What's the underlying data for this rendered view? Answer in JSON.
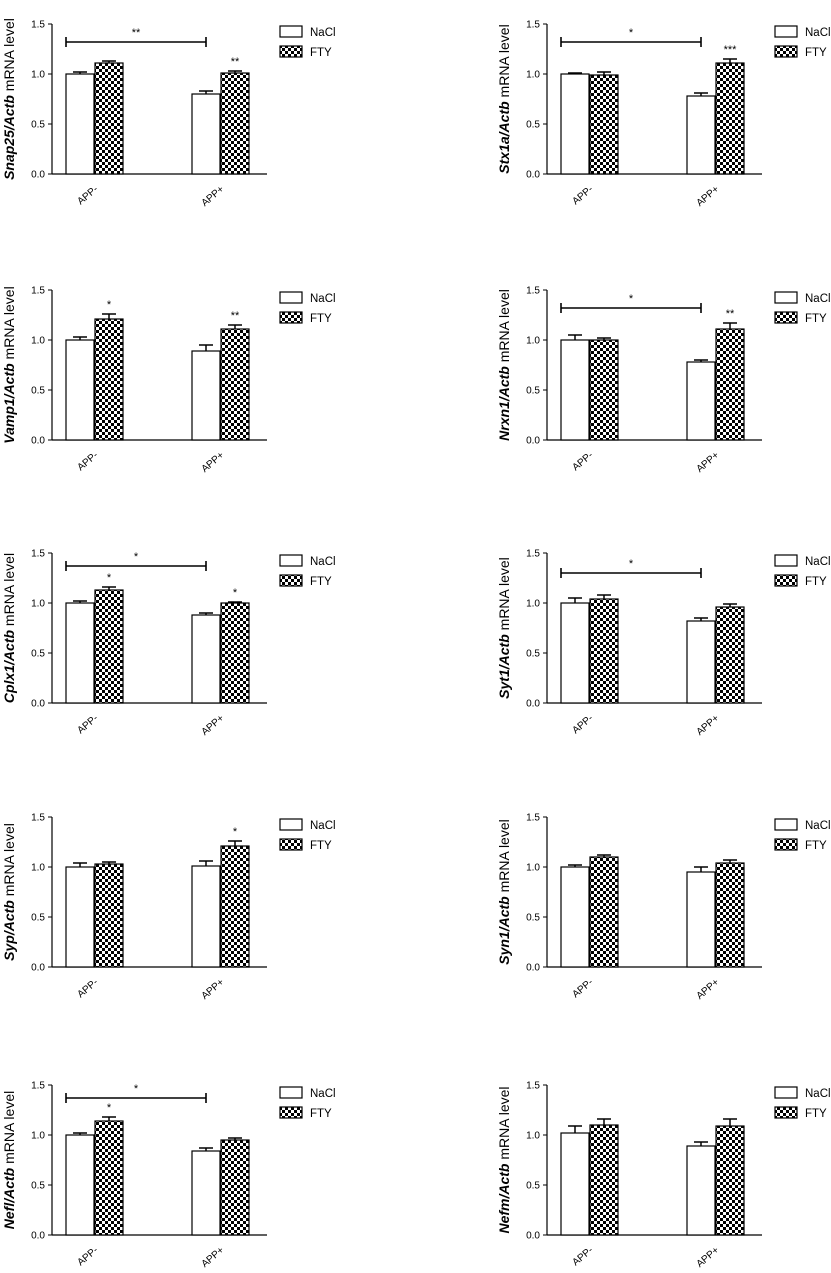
{
  "figure": {
    "patterns": {
      "FTY": "checker"
    },
    "colors": {
      "axis": "#000000",
      "bar_fill": "#ffffff",
      "bar_stroke": "#000000",
      "checker_dark": "#000000"
    }
  },
  "chart_data": [
    {
      "type": "bar",
      "ylabel_gene": "Snap25/Actb",
      "ylabel_rest": " mRNA level",
      "categories": [
        "APP-",
        "APP+"
      ],
      "series": [
        {
          "name": "NaCl",
          "values": [
            1.0,
            0.8
          ],
          "errors": [
            0.02,
            0.03
          ]
        },
        {
          "name": "FTY",
          "values": [
            1.11,
            1.01
          ],
          "errors": [
            0.02,
            0.02
          ]
        }
      ],
      "ylim": [
        0,
        1.5
      ],
      "yticks": [
        "0.0",
        "0.5",
        "1.0",
        "1.5"
      ],
      "legend": "top-right",
      "annotations": [
        {
          "type": "bracket",
          "from_category": 0,
          "to_category": 1,
          "y": 1.32,
          "label": "**"
        },
        {
          "type": "star",
          "category": 1,
          "series": 1,
          "label": "**"
        }
      ]
    },
    {
      "type": "bar",
      "ylabel_gene": "Stx1a/Actb",
      "ylabel_rest": " mRNA level",
      "categories": [
        "APP-",
        "APP+"
      ],
      "series": [
        {
          "name": "NaCl",
          "values": [
            1.0,
            0.78
          ],
          "errors": [
            0.01,
            0.03
          ]
        },
        {
          "name": "FTY",
          "values": [
            0.99,
            1.11
          ],
          "errors": [
            0.03,
            0.04
          ]
        }
      ],
      "ylim": [
        0,
        1.5
      ],
      "yticks": [
        "0.0",
        "0.5",
        "1.0",
        "1.5"
      ],
      "legend": "top-right",
      "annotations": [
        {
          "type": "bracket",
          "from_category": 0,
          "to_category": 1,
          "y": 1.32,
          "label": "*"
        },
        {
          "type": "star",
          "category": 1,
          "series": 1,
          "label": "***"
        }
      ]
    },
    {
      "type": "bar",
      "ylabel_gene": "Vamp1/Actb",
      "ylabel_rest": " mRNA level",
      "categories": [
        "APP-",
        "APP+"
      ],
      "series": [
        {
          "name": "NaCl",
          "values": [
            1.0,
            0.89
          ],
          "errors": [
            0.03,
            0.06
          ]
        },
        {
          "name": "FTY",
          "values": [
            1.21,
            1.11
          ],
          "errors": [
            0.05,
            0.04
          ]
        }
      ],
      "ylim": [
        0,
        1.5
      ],
      "yticks": [
        "0.0",
        "0.5",
        "1.0",
        "1.5"
      ],
      "legend": "top-right",
      "annotations": [
        {
          "type": "star",
          "category": 0,
          "series": 1,
          "label": "*"
        },
        {
          "type": "star",
          "category": 1,
          "series": 1,
          "label": "**"
        }
      ]
    },
    {
      "type": "bar",
      "ylabel_gene": "Nrxn1/Actb",
      "ylabel_rest": " mRNA level",
      "categories": [
        "APP-",
        "APP+"
      ],
      "series": [
        {
          "name": "NaCl",
          "values": [
            1.0,
            0.78
          ],
          "errors": [
            0.05,
            0.02
          ]
        },
        {
          "name": "FTY",
          "values": [
            1.0,
            1.11
          ],
          "errors": [
            0.02,
            0.06
          ]
        }
      ],
      "ylim": [
        0,
        1.5
      ],
      "yticks": [
        "0.0",
        "0.5",
        "1.0",
        "1.5"
      ],
      "legend": "top-right",
      "annotations": [
        {
          "type": "bracket",
          "from_category": 0,
          "to_category": 1,
          "y": 1.32,
          "label": "*"
        },
        {
          "type": "star",
          "category": 1,
          "series": 1,
          "label": "**"
        }
      ]
    },
    {
      "type": "bar",
      "ylabel_gene": "Cplx1/Actb",
      "ylabel_rest": " mRNA level",
      "categories": [
        "APP-",
        "APP+"
      ],
      "series": [
        {
          "name": "NaCl",
          "values": [
            1.0,
            0.88
          ],
          "errors": [
            0.02,
            0.02
          ]
        },
        {
          "name": "FTY",
          "values": [
            1.13,
            1.0
          ],
          "errors": [
            0.03,
            0.01
          ]
        }
      ],
      "ylim": [
        0,
        1.5
      ],
      "yticks": [
        "0.0",
        "0.5",
        "1.0",
        "1.5"
      ],
      "legend": "top-right",
      "annotations": [
        {
          "type": "bracket",
          "from_category": 0,
          "to_category": 1,
          "y": 1.37,
          "label": "*"
        },
        {
          "type": "star",
          "category": 0,
          "series": 1,
          "label": "*"
        },
        {
          "type": "star",
          "category": 1,
          "series": 1,
          "label": "*"
        }
      ]
    },
    {
      "type": "bar",
      "ylabel_gene": "Syt1/Actb",
      "ylabel_rest": " mRNA level",
      "categories": [
        "APP-",
        "APP+"
      ],
      "series": [
        {
          "name": "NaCl",
          "values": [
            1.0,
            0.82
          ],
          "errors": [
            0.05,
            0.03
          ]
        },
        {
          "name": "FTY",
          "values": [
            1.04,
            0.96
          ],
          "errors": [
            0.04,
            0.03
          ]
        }
      ],
      "ylim": [
        0,
        1.5
      ],
      "yticks": [
        "0.0",
        "0.5",
        "1.0",
        "1.5"
      ],
      "legend": "top-right",
      "annotations": [
        {
          "type": "bracket",
          "from_category": 0,
          "to_category": 1,
          "y": 1.3,
          "label": "*"
        }
      ]
    },
    {
      "type": "bar",
      "ylabel_gene": "Syp/Actb",
      "ylabel_rest": " mRNA level",
      "categories": [
        "APP-",
        "APP+"
      ],
      "series": [
        {
          "name": "NaCl",
          "values": [
            1.0,
            1.01
          ],
          "errors": [
            0.04,
            0.05
          ]
        },
        {
          "name": "FTY",
          "values": [
            1.03,
            1.21
          ],
          "errors": [
            0.02,
            0.05
          ]
        }
      ],
      "ylim": [
        0,
        1.5
      ],
      "yticks": [
        "0.0",
        "0.5",
        "1.0",
        "1.5"
      ],
      "legend": "top-right",
      "annotations": [
        {
          "type": "star",
          "category": 1,
          "series": 1,
          "label": "*"
        }
      ]
    },
    {
      "type": "bar",
      "ylabel_gene": "Syn1/Actb",
      "ylabel_rest": " mRNA level",
      "categories": [
        "APP-",
        "APP+"
      ],
      "series": [
        {
          "name": "NaCl",
          "values": [
            1.0,
            0.95
          ],
          "errors": [
            0.02,
            0.05
          ]
        },
        {
          "name": "FTY",
          "values": [
            1.1,
            1.04
          ],
          "errors": [
            0.02,
            0.03
          ]
        }
      ],
      "ylim": [
        0,
        1.5
      ],
      "yticks": [
        "0.0",
        "0.5",
        "1.0",
        "1.5"
      ],
      "legend": "top-right",
      "annotations": []
    },
    {
      "type": "bar",
      "ylabel_gene": "Nefl/Actb",
      "ylabel_rest": " mRNA level",
      "categories": [
        "APP-",
        "APP+"
      ],
      "series": [
        {
          "name": "NaCl",
          "values": [
            1.0,
            0.84
          ],
          "errors": [
            0.02,
            0.03
          ]
        },
        {
          "name": "FTY",
          "values": [
            1.14,
            0.95
          ],
          "errors": [
            0.04,
            0.02
          ]
        }
      ],
      "ylim": [
        0,
        1.5
      ],
      "yticks": [
        "0.0",
        "0.5",
        "1.0",
        "1.5"
      ],
      "legend": "top-right",
      "annotations": [
        {
          "type": "bracket",
          "from_category": 0,
          "to_category": 1,
          "y": 1.37,
          "label": "*"
        },
        {
          "type": "star",
          "category": 0,
          "series": 1,
          "label": "*"
        }
      ]
    },
    {
      "type": "bar",
      "ylabel_gene": "Nefm/Actb",
      "ylabel_rest": " mRNA level",
      "categories": [
        "APP-",
        "APP+"
      ],
      "series": [
        {
          "name": "NaCl",
          "values": [
            1.02,
            0.89
          ],
          "errors": [
            0.07,
            0.04
          ]
        },
        {
          "name": "FTY",
          "values": [
            1.1,
            1.09
          ],
          "errors": [
            0.06,
            0.07
          ]
        }
      ],
      "ylim": [
        0,
        1.5
      ],
      "yticks": [
        "0.0",
        "0.5",
        "1.0",
        "1.5"
      ],
      "legend": "top-right",
      "annotations": []
    }
  ]
}
